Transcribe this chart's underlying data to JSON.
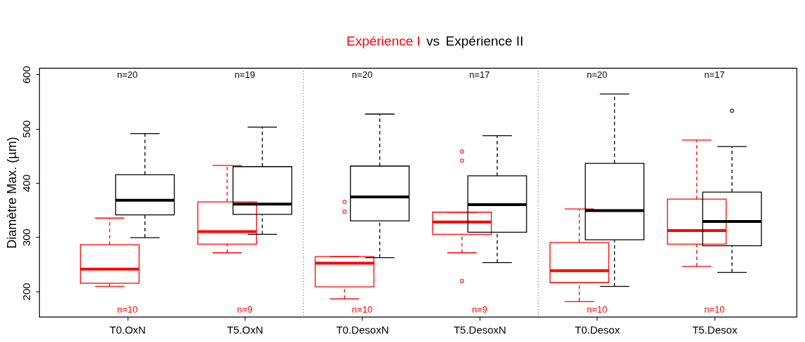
{
  "chart_data": {
    "type": "box",
    "title": "vs",
    "ylabel": "Diamètre Max. (µm)",
    "categories": [
      "T0.OxN",
      "T5.OxN",
      "T0.DesoxN",
      "T5.DesoxN",
      "T0.Desox",
      "T5.Desox"
    ],
    "ylim": [
      153,
      612
    ],
    "yticks": [
      200,
      300,
      400,
      500,
      600
    ],
    "series": [
      {
        "name": "Expérience I",
        "color": "#ff0000",
        "value_labels": [
          "n=10",
          "n=9",
          "n=10",
          "n=9",
          "n=10",
          "n=10"
        ],
        "boxes": [
          {
            "low": 209,
            "q1": 215,
            "median": 241,
            "q3": 286,
            "high": 335
          },
          {
            "low": 271,
            "q1": 287,
            "median": 310,
            "q3": 365,
            "high": 432
          },
          {
            "low": 186,
            "q1": 208,
            "median": 252,
            "q3": 264,
            "high": 264,
            "outliers": [
              365,
              347
            ]
          },
          {
            "low": 271,
            "q1": 305,
            "median": 328,
            "q3": 346,
            "high": 346,
            "outliers": [
              458,
              441,
              219
            ]
          },
          {
            "low": 181,
            "q1": 216,
            "median": 238,
            "q3": 290,
            "high": 352
          },
          {
            "low": 246,
            "q1": 287,
            "median": 312,
            "q3": 370,
            "high": 479
          }
        ]
      },
      {
        "name": "Expérience II",
        "color": "#000000",
        "value_labels": [
          "n=20",
          "n=19",
          "n=20",
          "n=17",
          "n=20",
          "n=17"
        ],
        "boxes": [
          {
            "low": 299,
            "q1": 341,
            "median": 368,
            "q3": 415,
            "high": 491
          },
          {
            "low": 305,
            "q1": 342,
            "median": 361,
            "q3": 430,
            "high": 503
          },
          {
            "low": 262,
            "q1": 330,
            "median": 374,
            "q3": 431,
            "high": 527
          },
          {
            "low": 253,
            "q1": 309,
            "median": 360,
            "q3": 413,
            "high": 487
          },
          {
            "low": 209,
            "q1": 295,
            "median": 349,
            "q3": 436,
            "high": 564
          },
          {
            "low": 235,
            "q1": 284,
            "median": 329,
            "q3": 383,
            "high": 467,
            "outliers": [
              533
            ]
          }
        ]
      }
    ]
  }
}
